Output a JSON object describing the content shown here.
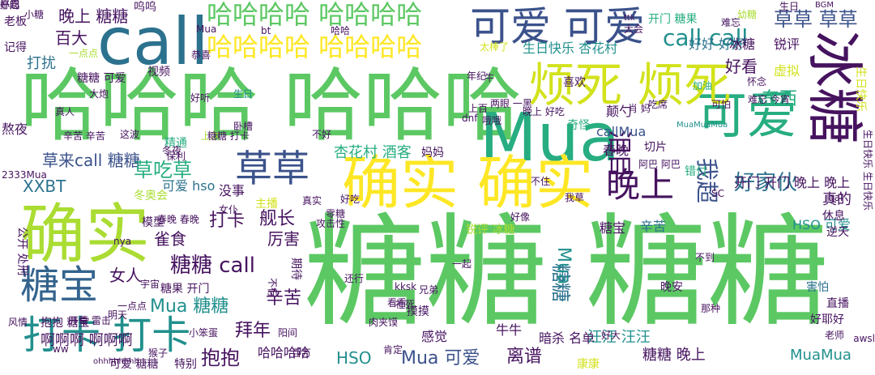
{
  "palette": {
    "deep_purple": "#46135f",
    "indigo": "#3b528b",
    "blue": "#33638d",
    "teal_blue": "#2c728e",
    "teal": "#21908d",
    "sea_green": "#27ad81",
    "green": "#5cc863",
    "lime": "#aadc32",
    "yellow": "#d2e21b",
    "bright_yellow": "#fde725"
  },
  "words": [
    {
      "text": "糖糖 糖糖",
      "color": "green",
      "vertical": false
    },
    {
      "text": "哈哈哈 哈哈哈",
      "color": "green",
      "vertical": false
    },
    {
      "text": "call",
      "color": "teal_blue",
      "vertical": false
    },
    {
      "text": "Mua",
      "color": "sea_green",
      "vertical": false
    },
    {
      "text": "确实 确实",
      "color": "bright_yellow",
      "vertical": false
    },
    {
      "text": "确实",
      "color": "lime",
      "vertical": false
    },
    {
      "text": "冰糖",
      "color": "deep_purple",
      "vertical": true
    },
    {
      "text": "可爱",
      "color": "sea_green",
      "vertical": false
    },
    {
      "text": "烦死 烦死",
      "color": "yellow",
      "vertical": false
    },
    {
      "text": "可爱 可爱",
      "color": "indigo",
      "vertical": false
    },
    {
      "text": "哈哈哈哈 哈哈哈哈",
      "color": "green",
      "vertical": false
    },
    {
      "text": "哈哈哈哈 哈哈哈哈",
      "color": "bright_yellow",
      "vertical": false
    },
    {
      "text": "草草",
      "color": "indigo",
      "vertical": false
    },
    {
      "text": "晚上",
      "color": "deep_purple",
      "vertical": false
    },
    {
      "text": "糖宝",
      "color": "blue",
      "vertical": false
    },
    {
      "text": "打卡 打卡",
      "color": "teal",
      "vertical": false
    },
    {
      "text": "call call",
      "color": "teal",
      "vertical": false
    },
    {
      "text": "草草 草草",
      "color": "indigo",
      "vertical": false
    },
    {
      "text": "好家伙",
      "color": "teal_blue",
      "vertical": false
    },
    {
      "text": "东西",
      "color": "sea_green",
      "vertical": false
    },
    {
      "text": "我超",
      "color": "indigo",
      "vertical": true
    },
    {
      "text": "泪目",
      "color": "deep_purple",
      "vertical": true
    },
    {
      "text": "晚上 糖糖",
      "color": "deep_purple",
      "vertical": false
    },
    {
      "text": "百大",
      "color": "deep_purple",
      "vertical": false
    },
    {
      "text": "打扰",
      "color": "teal_blue",
      "vertical": false
    },
    {
      "text": "草来call 糖糖",
      "color": "indigo",
      "vertical": false
    },
    {
      "text": "XXBT",
      "color": "teal_blue",
      "vertical": false
    },
    {
      "text": "草吃草",
      "color": "sea_green",
      "vertical": false
    },
    {
      "text": "糖糖 call",
      "color": "deep_purple",
      "vertical": false
    },
    {
      "text": "Mua 糖糖",
      "color": "teal",
      "vertical": false
    },
    {
      "text": "拜年",
      "color": "deep_purple",
      "vertical": false
    },
    {
      "text": "抱抱",
      "color": "deep_purple",
      "vertical": false
    },
    {
      "text": "Mua 可爱",
      "color": "indigo",
      "vertical": false
    },
    {
      "text": "离谱",
      "color": "deep_purple",
      "vertical": false
    },
    {
      "text": "糖糖 晚上",
      "color": "deep_purple",
      "vertical": false
    },
    {
      "text": "MuaMua",
      "color": "teal",
      "vertical": false
    },
    {
      "text": "HSO",
      "color": "teal",
      "vertical": false
    },
    {
      "text": "哈哈哈哈",
      "color": "deep_purple",
      "vertical": false
    },
    {
      "text": "女人",
      "color": "deep_purple",
      "vertical": false
    },
    {
      "text": "辛苦",
      "color": "deep_purple",
      "vertical": false
    },
    {
      "text": "舰长",
      "color": "deep_purple",
      "vertical": false
    },
    {
      "text": "打卡",
      "color": "deep_purple",
      "vertical": false
    },
    {
      "text": "厉害",
      "color": "deep_purple",
      "vertical": false
    },
    {
      "text": "雀食",
      "color": "deep_purple",
      "vertical": false
    },
    {
      "text": "糖糖",
      "color": "teal_blue",
      "vertical": true
    },
    {
      "text": "Mua",
      "color": "teal",
      "vertical": true
    },
    {
      "text": "好看",
      "color": "deep_purple",
      "vertical": false
    },
    {
      "text": "好好 好好",
      "color": "teal_blue",
      "vertical": false
    },
    {
      "text": "开门 糖果",
      "color": "sea_green",
      "vertical": false
    },
    {
      "text": "冰糖",
      "color": "deep_purple",
      "vertical": false
    },
    {
      "text": "锐评",
      "color": "deep_purple",
      "vertical": false
    },
    {
      "text": "颠勺",
      "color": "deep_purple",
      "vertical": false
    },
    {
      "text": "callMua",
      "color": "indigo",
      "vertical": false
    },
    {
      "text": "奇怪",
      "color": "sea_green",
      "vertical": false
    },
    {
      "text": "春晚",
      "color": "deep_purple",
      "vertical": false
    },
    {
      "text": "妈妈",
      "color": "deep_purple",
      "vertical": false
    },
    {
      "text": "杏花村 酒客",
      "color": "sea_green",
      "vertical": false
    },
    {
      "text": "可爱 hso",
      "color": "teal_blue",
      "vertical": false
    },
    {
      "text": "冬奥会",
      "color": "lime",
      "vertical": false
    },
    {
      "text": "没事",
      "color": "deep_purple",
      "vertical": false
    },
    {
      "text": "主播",
      "color": "yellow",
      "vertical": false
    },
    {
      "text": "开门 开门",
      "color": "deep_purple",
      "vertical": false
    },
    {
      "text": "晚上 晚上",
      "color": "deep_purple",
      "vertical": false
    },
    {
      "text": "真的",
      "color": "deep_purple",
      "vertical": false
    },
    {
      "text": "糖宝",
      "color": "deep_purple",
      "vertical": false
    },
    {
      "text": "辛苦",
      "color": "teal_blue",
      "vertical": false
    },
    {
      "text": "切片",
      "color": "deep_purple",
      "vertical": false
    },
    {
      "text": "错付",
      "color": "sea_green",
      "vertical": false
    },
    {
      "text": "HSO 可爱",
      "color": "teal",
      "vertical": false
    },
    {
      "text": "逆天",
      "color": "deep_purple",
      "vertical": false
    },
    {
      "text": "休息",
      "color": "deep_purple",
      "vertical": false
    },
    {
      "text": "虚拟",
      "color": "yellow",
      "vertical": false
    },
    {
      "text": "生日快乐 杏花村",
      "color": "teal",
      "vertical": false
    },
    {
      "text": "喜欢",
      "color": "deep_purple",
      "vertical": false
    },
    {
      "text": "模型",
      "color": "deep_purple",
      "vertical": false
    },
    {
      "text": "视频",
      "color": "deep_purple",
      "vertical": false
    },
    {
      "text": "一点点",
      "color": "lime",
      "vertical": false
    },
    {
      "text": "糖糖 可爱",
      "color": "deep_purple",
      "vertical": false
    },
    {
      "text": "熬夜",
      "color": "deep_purple",
      "vertical": false
    },
    {
      "text": "记得",
      "color": "deep_purple",
      "vertical": false
    },
    {
      "text": "老板",
      "color": "deep_purple",
      "vertical": false
    },
    {
      "text": "呜呜",
      "color": "deep_purple",
      "vertical": false
    },
    {
      "text": "幼糖",
      "color": "lime",
      "vertical": false
    },
    {
      "text": "康康",
      "color": "yellow",
      "vertical": false
    },
    {
      "text": "感觉",
      "color": "deep_purple",
      "vertical": false
    },
    {
      "text": "暗杀 名单",
      "color": "deep_purple",
      "vertical": false
    },
    {
      "text": "汪汪 汪汪",
      "color": "teal",
      "vertical": false
    },
    {
      "text": "牛牛",
      "color": "deep_purple",
      "vertical": false
    },
    {
      "text": "摸摸",
      "color": "deep_purple",
      "vertical": false
    },
    {
      "text": "好耶好",
      "color": "deep_purple",
      "vertical": false
    },
    {
      "text": "直播",
      "color": "deep_purple",
      "vertical": false
    },
    {
      "text": "害怕",
      "color": "teal_blue",
      "vertical": false
    },
    {
      "text": "晚安",
      "color": "deep_purple",
      "vertical": false
    },
    {
      "text": "特别",
      "color": "deep_purple",
      "vertical": false
    },
    {
      "text": "可爱 糖糖",
      "color": "deep_purple",
      "vertical": false
    },
    {
      "text": "啊啊啊 啊啊啊",
      "color": "deep_purple",
      "vertical": false
    },
    {
      "text": "抱抱 糖宝",
      "color": "deep_purple",
      "vertical": false
    },
    {
      "text": "一点点",
      "color": "deep_purple",
      "vertical": false
    },
    {
      "text": "糖果 开门",
      "color": "deep_purple",
      "vertical": false
    },
    {
      "text": "宇宙",
      "color": "deep_purple",
      "vertical": false
    },
    {
      "text": "小笨蛋",
      "color": "deep_purple",
      "vertical": false
    },
    {
      "text": "阳间",
      "color": "deep_purple",
      "vertical": false
    },
    {
      "text": "春晚 春晚",
      "color": "deep_purple",
      "vertical": false
    },
    {
      "text": "公开 处刑",
      "color": "deep_purple",
      "vertical": true
    },
    {
      "text": "生日快乐",
      "color": "yellow",
      "vertical": true
    },
    {
      "text": "生日快乐 生日快乐",
      "color": "deep_purple",
      "vertical": true
    },
    {
      "text": "期待",
      "color": "deep_purple",
      "vertical": true
    },
    {
      "text": "不行",
      "color": "deep_purple",
      "vertical": true
    },
    {
      "text": "女仆",
      "color": "deep_purple",
      "vertical": false
    },
    {
      "text": "上次",
      "color": "lime",
      "vertical": false
    },
    {
      "text": "生日",
      "color": "teal",
      "vertical": false
    },
    {
      "text": "太棒了",
      "color": "yellow",
      "vertical": false
    },
    {
      "text": "精通",
      "color": "sea_green",
      "vertical": false
    },
    {
      "text": "恭喜",
      "color": "deep_purple",
      "vertical": false
    },
    {
      "text": "保利",
      "color": "deep_purple",
      "vertical": false
    },
    {
      "text": "吃席",
      "color": "deep_purple",
      "vertical": false
    },
    {
      "text": "肖 妈",
      "color": "deep_purple",
      "vertical": false
    },
    {
      "text": "可怕",
      "color": "deep_purple",
      "vertical": false
    },
    {
      "text": "怀念",
      "color": "deep_purple",
      "vertical": false
    },
    {
      "text": "难忘 今宵",
      "color": "deep_purple",
      "vertical": false
    },
    {
      "text": "阿巴 阿巴",
      "color": "deep_purple",
      "vertical": false
    },
    {
      "text": "大会",
      "color": "deep_purple",
      "vertical": false
    },
    {
      "text": "难忘",
      "color": "deep_purple",
      "vertical": false
    },
    {
      "text": "生日",
      "color": "deep_purple",
      "vertical": false
    },
    {
      "text": "卧槽",
      "color": "deep_purple",
      "vertical": false
    },
    {
      "text": "加油",
      "color": "sea_green",
      "vertical": false
    },
    {
      "text": "Mua",
      "color": "deep_purple",
      "vertical": false
    },
    {
      "text": "bt",
      "color": "deep_purple",
      "vertical": false
    },
    {
      "text": "哈哈",
      "color": "deep_purple",
      "vertical": false
    },
    {
      "text": "BGM",
      "color": "deep_purple",
      "vertical": false
    },
    {
      "text": "好像",
      "color": "deep_purple",
      "vertical": false
    },
    {
      "text": "牛",
      "color": "deep_purple",
      "vertical": false
    },
    {
      "text": "MuaMuaMua",
      "color": "teal",
      "vertical": false
    },
    {
      "text": "辛苦 辛苦",
      "color": "deep_purple",
      "vertical": false
    },
    {
      "text": "糖糖 打卡",
      "color": "deep_purple",
      "vertical": false
    },
    {
      "text": "晚上 好吃",
      "color": "deep_purple",
      "vertical": false
    },
    {
      "text": "冬夜",
      "color": "deep_purple",
      "vertical": false
    },
    {
      "text": "攻击性",
      "color": "deep_purple",
      "vertical": false
    },
    {
      "text": "锐评 冰糖",
      "color": "lime",
      "vertical": false
    },
    {
      "text": "肯定",
      "color": "deep_purple",
      "vertical": false
    },
    {
      "text": "这波",
      "color": "deep_purple",
      "vertical": false
    },
    {
      "text": "百万",
      "color": "deep_purple",
      "vertical": false
    },
    {
      "text": "老师",
      "color": "deep_purple",
      "vertical": false
    },
    {
      "text": "好大",
      "color": "deep_purple",
      "vertical": false
    },
    {
      "text": "那种",
      "color": "deep_purple",
      "vertical": false
    },
    {
      "text": "不到",
      "color": "deep_purple",
      "vertical": false
    },
    {
      "text": "猴子",
      "color": "deep_purple",
      "vertical": false
    },
    {
      "text": "风情",
      "color": "deep_purple",
      "vertical": false
    },
    {
      "text": "ww",
      "color": "deep_purple",
      "vertical": false
    },
    {
      "text": "awsl",
      "color": "deep_purple",
      "vertical": false
    },
    {
      "text": "gal",
      "color": "deep_purple",
      "vertical": false
    },
    {
      "text": "nya",
      "color": "deep_purple",
      "vertical": false
    },
    {
      "text": "kksk",
      "color": "deep_purple",
      "vertical": false
    },
    {
      "text": "SC",
      "color": "deep_purple",
      "vertical": false
    },
    {
      "text": "ttk",
      "color": "deep_purple",
      "vertical": false
    },
    {
      "text": "ohhhhhhhh",
      "color": "deep_purple",
      "vertical": false
    },
    {
      "text": "2333Mua",
      "color": "deep_purple",
      "vertical": false
    },
    {
      "text": "真人",
      "color": "deep_purple",
      "vertical": false
    },
    {
      "text": "明天",
      "color": "deep_purple",
      "vertical": false
    },
    {
      "text": "开幕 雷击",
      "color": "deep_purple",
      "vertical": false
    },
    {
      "text": "肉夹馍",
      "color": "deep_purple",
      "vertical": false
    },
    {
      "text": "兄弟",
      "color": "deep_purple",
      "vertical": false
    },
    {
      "text": "社死",
      "color": "deep_purple",
      "vertical": false
    },
    {
      "text": "两眼 一黑",
      "color": "deep_purple",
      "vertical": false
    },
    {
      "text": "不好",
      "color": "deep_purple",
      "vertical": false
    },
    {
      "text": "真实",
      "color": "deep_purple",
      "vertical": false
    },
    {
      "text": "零糖",
      "color": "deep_purple",
      "vertical": false
    },
    {
      "text": "不住",
      "color": "deep_purple",
      "vertical": false
    },
    {
      "text": "年纪",
      "color": "deep_purple",
      "vertical": false
    },
    {
      "text": "小糖",
      "color": "deep_purple",
      "vertical": false
    },
    {
      "text": "好听",
      "color": "deep_purple",
      "vertical": false
    },
    {
      "text": "上百",
      "color": "deep_purple",
      "vertical": false
    },
    {
      "text": "还行",
      "color": "deep_purple",
      "vertical": false
    },
    {
      "text": "一起",
      "color": "deep_purple",
      "vertical": false
    },
    {
      "text": "好吃",
      "color": "deep_purple",
      "vertical": false
    },
    {
      "text": "dnf",
      "color": "deep_purple",
      "vertical": false
    },
    {
      "text": "看看",
      "color": "deep_purple",
      "vertical": false
    },
    {
      "text": "大炮",
      "color": "deep_purple",
      "vertical": false
    },
    {
      "text": "我草",
      "color": "deep_purple",
      "vertical": false
    },
    {
      "text": "哦哦",
      "color": "deep_purple",
      "vertical": false
    },
    {
      "text": "一起",
      "color": "deep_purple",
      "vertical": false
    },
    {
      "text": "小心",
      "color": "deep_purple",
      "vertical": false
    },
    {
      "text": "开门",
      "color": "deep_purple",
      "vertical": false
    },
    {
      "text": "好吃",
      "color": "deep_purple",
      "vertical": false
    }
  ]
}
